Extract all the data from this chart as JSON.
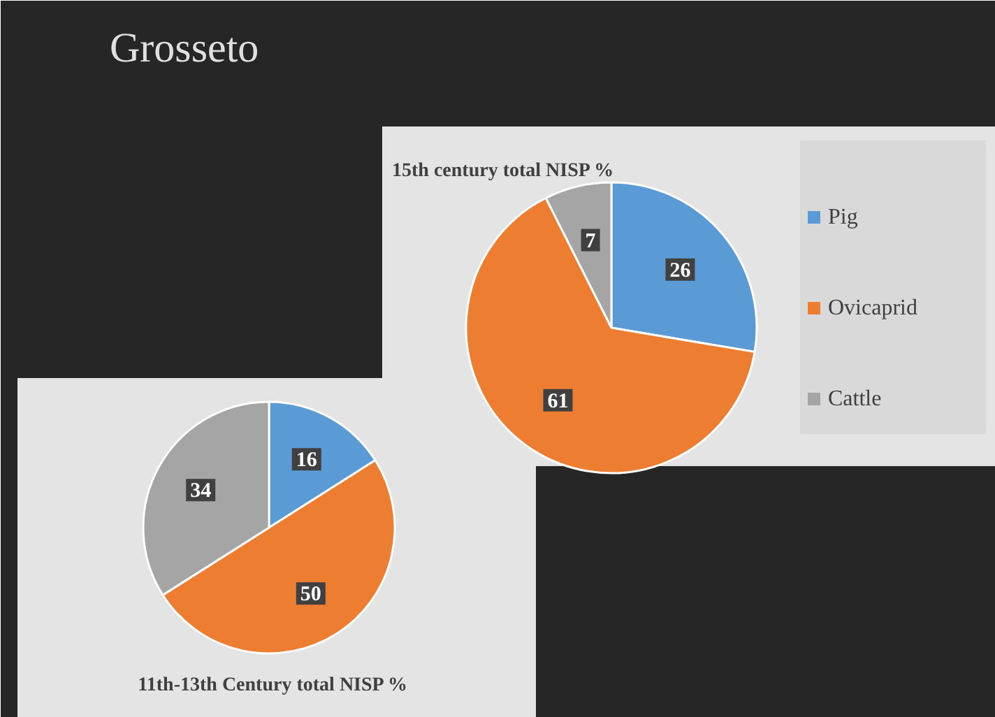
{
  "chart_data": [
    {
      "type": "pie",
      "title": "15th century total NISP %",
      "annotations": [
        "Grosseto"
      ],
      "categories": [
        "Pig",
        "Ovicaprid",
        "Cattle"
      ],
      "values": [
        26,
        61,
        7
      ],
      "colors": [
        "#5b9bd5",
        "#ed7d31",
        "#a5a5a5"
      ],
      "data_labels": true,
      "legend": "right"
    },
    {
      "type": "pie",
      "title": "11th-13th Century total NISP %",
      "categories": [
        null,
        null,
        null
      ],
      "values": [
        16,
        50,
        34
      ],
      "colors": [
        "#5b9bd5",
        "#ed7d31",
        "#a5a5a5"
      ],
      "data_labels": true,
      "legend": false
    }
  ]
}
